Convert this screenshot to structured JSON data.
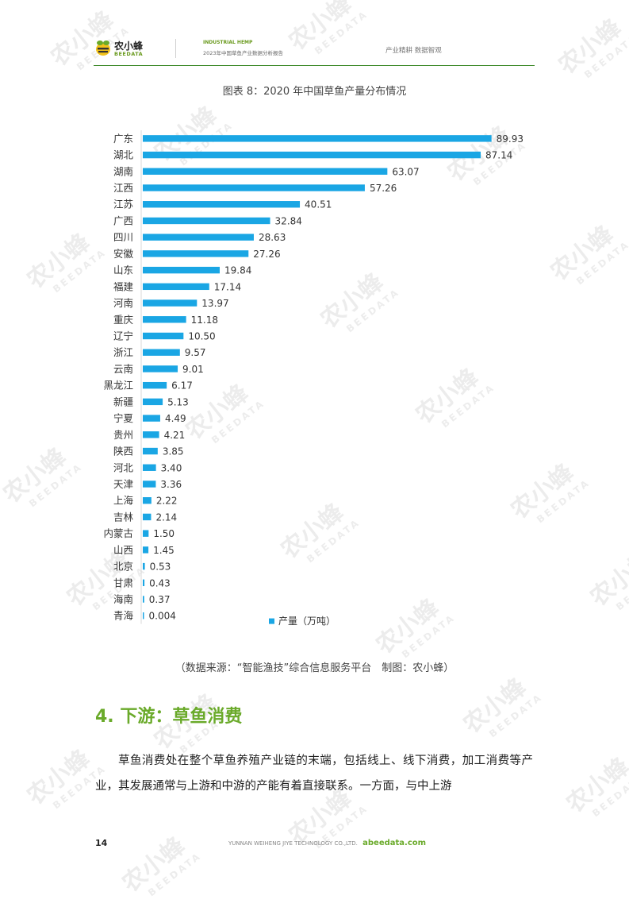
{
  "header": {
    "logo_cn": "农小蜂",
    "logo_en": "BEEDATA",
    "report_en": "INDUSTRIAL HEMP",
    "report_cn": "2023年中国草鱼产业数据分析报告",
    "slogan": "产业精耕  数据智观"
  },
  "watermark": {
    "cn": "农小蜂",
    "en": "BEEDATA"
  },
  "colors": {
    "bar": "#1aa6e4",
    "accent_green": "#6aaa2a",
    "rule_green": "#3d8a2a"
  },
  "chart_data": {
    "type": "bar",
    "orientation": "horizontal",
    "title": "图表 8：2020 年中国草鱼产量分布情况",
    "categories": [
      "广东",
      "湖北",
      "湖南",
      "江西",
      "江苏",
      "广西",
      "四川",
      "安徽",
      "山东",
      "福建",
      "河南",
      "重庆",
      "辽宁",
      "浙江",
      "云南",
      "黑龙江",
      "新疆",
      "宁夏",
      "贵州",
      "陕西",
      "河北",
      "天津",
      "上海",
      "吉林",
      "内蒙古",
      "山西",
      "北京",
      "甘肃",
      "海南",
      "青海"
    ],
    "series": [
      {
        "name": "产量（万吨）",
        "values": [
          89.93,
          87.14,
          63.07,
          57.26,
          40.51,
          32.84,
          28.63,
          27.26,
          19.84,
          17.14,
          13.97,
          11.18,
          10.5,
          9.57,
          9.01,
          6.17,
          5.13,
          4.49,
          4.21,
          3.85,
          3.4,
          3.36,
          2.22,
          2.14,
          1.5,
          1.45,
          0.53,
          0.43,
          0.37,
          0.004
        ],
        "labels": [
          "89.93",
          "87.14",
          "63.07",
          "57.26",
          "40.51",
          "32.84",
          "28.63",
          "27.26",
          "19.84",
          "17.14",
          "13.97",
          "11.18",
          "10.50",
          "9.57",
          "9.01",
          "6.17",
          "5.13",
          "4.49",
          "4.21",
          "3.85",
          "3.40",
          "3.36",
          "2.22",
          "2.14",
          "1.50",
          "1.45",
          "0.53",
          "0.43",
          "0.37",
          "0.004"
        ]
      }
    ],
    "xlim": [
      0,
      90
    ],
    "legend_position": "bottom",
    "grid": false
  },
  "source": "（数据来源：“智能渔技”综合信息服务平台　制图：农小蜂）",
  "section": {
    "heading": "4. 下游：草鱼消费",
    "paragraph": "草鱼消费处在整个草鱼养殖产业链的末端，包括线上、线下消费，加工消费等产业，其发展通常与上游和中游的产能有着直接联系。一方面，与中上游"
  },
  "footer": {
    "page_number": "14",
    "company": "YUNNAN WEIHENG JIYE TECHNOLOGY CO.,LTD.",
    "site": "abeedata.com"
  }
}
